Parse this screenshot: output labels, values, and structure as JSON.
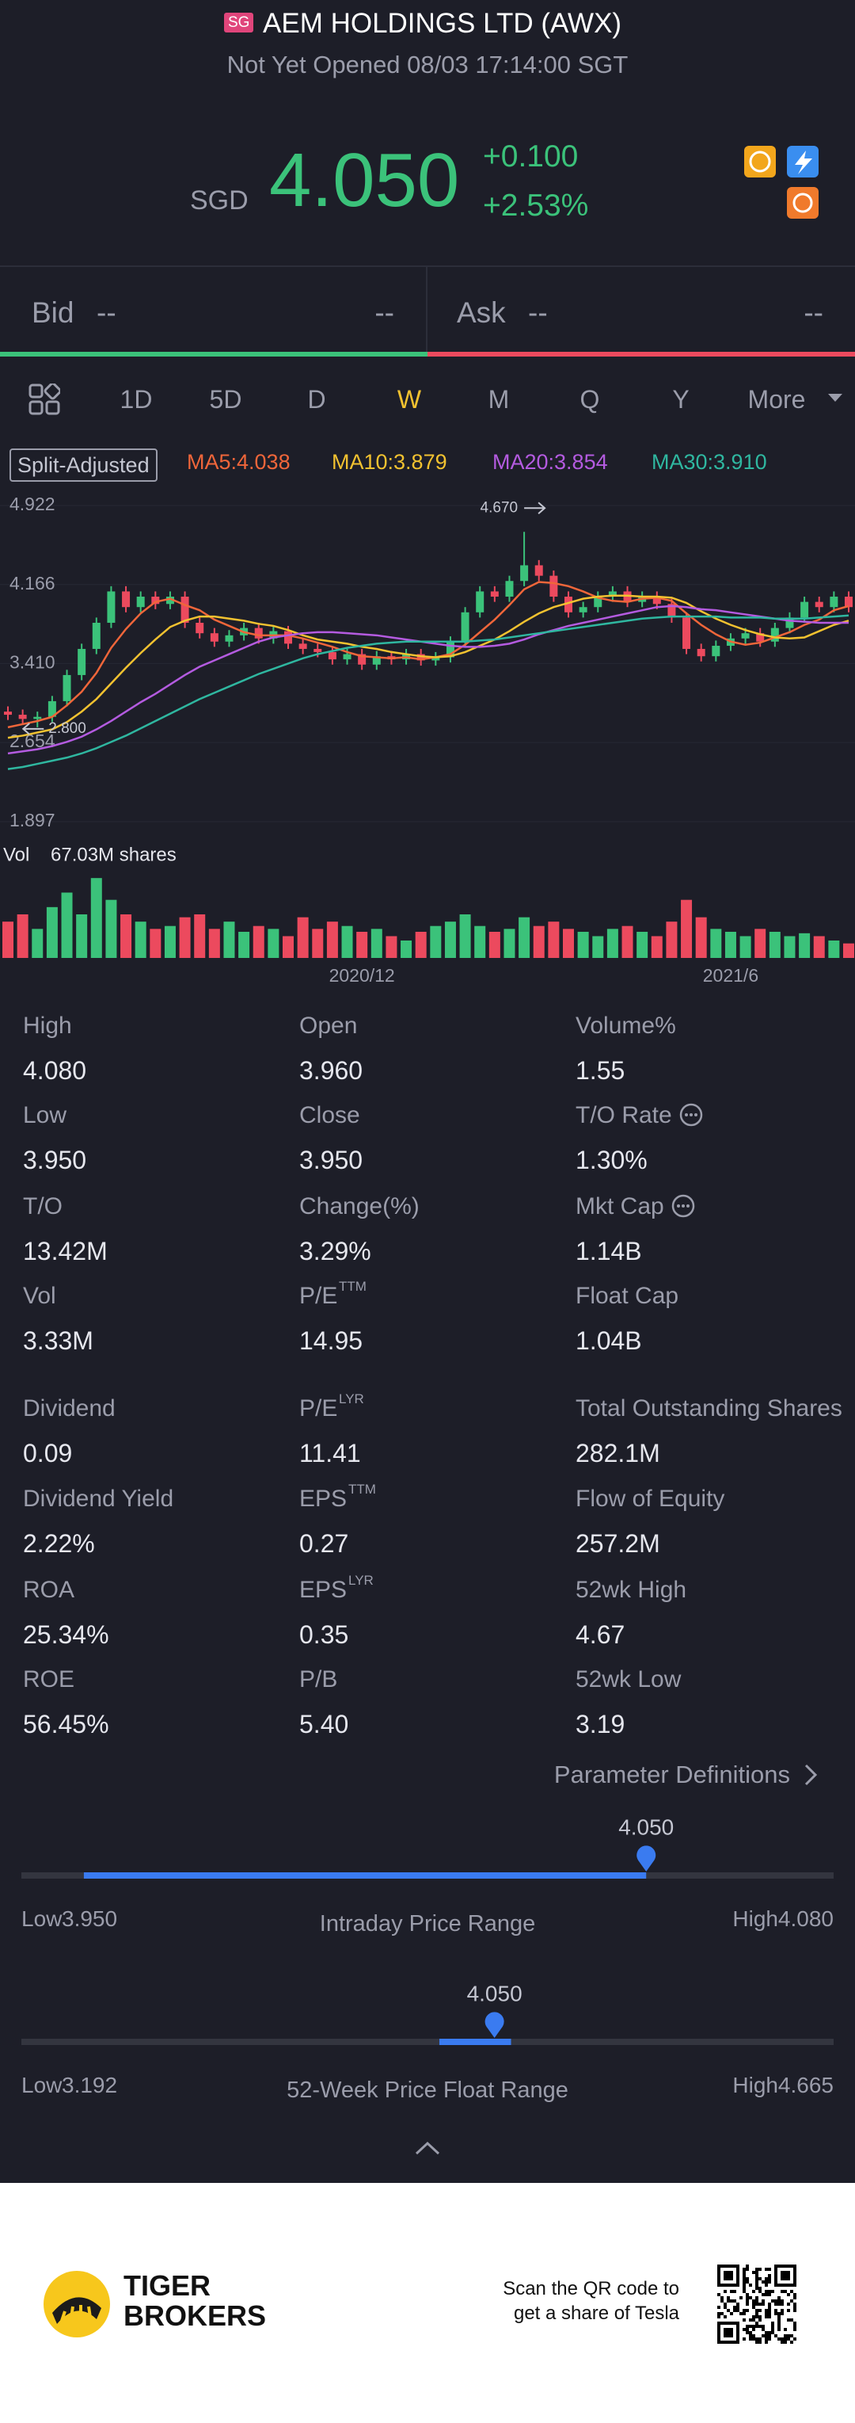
{
  "header": {
    "badge": "SG",
    "title": "AEM HOLDINGS LTD (AWX)",
    "status": "Not Yet Opened 08/03 17:14:00 SGT"
  },
  "quote": {
    "currency": "SGD",
    "price": "4.050",
    "change": "+0.100",
    "change_pct": "+2.53%"
  },
  "book": {
    "bid_label": "Bid",
    "bid_price": "--",
    "bid_size": "--",
    "ask_label": "Ask",
    "ask_price": "--",
    "ask_size": "--"
  },
  "tabs": {
    "items": [
      "1D",
      "5D",
      "D",
      "W",
      "M",
      "Q",
      "Y",
      "More"
    ],
    "active": 3
  },
  "chart_data": {
    "type": "candlestick",
    "adjust_label": "Split-Adjusted",
    "ylim": [
      1.897,
      4.922
    ],
    "yticks": [
      {
        "value": 4.922,
        "label": "4.922"
      },
      {
        "value": 4.166,
        "label": "4.166"
      },
      {
        "value": 3.41,
        "label": "3.410"
      },
      {
        "value": 2.654,
        "label": "2.654"
      },
      {
        "value": 1.897,
        "label": "1.897"
      }
    ],
    "xticks": [
      {
        "value": 24,
        "label": "2020/12"
      },
      {
        "value": 49,
        "label": "2021/6"
      }
    ],
    "open": [
      2.95,
      2.92,
      2.88,
      2.9,
      3.05,
      3.3,
      3.55,
      3.8,
      4.1,
      3.95,
      4.05,
      3.98,
      4.05,
      3.8,
      3.7,
      3.62,
      3.68,
      3.75,
      3.65,
      3.72,
      3.6,
      3.55,
      3.52,
      3.45,
      3.5,
      3.4,
      3.48,
      3.45,
      3.5,
      3.44,
      3.47,
      3.62,
      3.9,
      4.1,
      4.05,
      4.2,
      4.35,
      4.25,
      4.05,
      3.9,
      3.95,
      4.05,
      4.1,
      4.0,
      4.05,
      3.98,
      3.85,
      3.55,
      3.48,
      3.58,
      3.65,
      3.7,
      3.62,
      3.75,
      3.85,
      4.0,
      3.95,
      4.05
    ],
    "high": [
      3.0,
      2.97,
      2.95,
      3.1,
      3.35,
      3.6,
      3.85,
      4.15,
      4.15,
      4.1,
      4.1,
      4.1,
      4.1,
      3.85,
      3.75,
      3.73,
      3.8,
      3.8,
      3.77,
      3.77,
      3.65,
      3.6,
      3.57,
      3.55,
      3.55,
      3.53,
      3.53,
      3.55,
      3.55,
      3.52,
      3.67,
      3.95,
      4.15,
      4.15,
      4.25,
      4.67,
      4.4,
      4.3,
      4.1,
      4.0,
      4.1,
      4.15,
      4.15,
      4.1,
      4.1,
      4.03,
      3.9,
      3.6,
      3.63,
      3.7,
      3.75,
      3.75,
      3.8,
      3.9,
      4.05,
      4.05,
      4.1,
      4.1
    ],
    "low": [
      2.87,
      2.83,
      2.8,
      2.85,
      3.0,
      3.25,
      3.5,
      3.75,
      3.9,
      3.9,
      3.93,
      3.93,
      3.75,
      3.65,
      3.57,
      3.57,
      3.63,
      3.6,
      3.6,
      3.55,
      3.5,
      3.47,
      3.4,
      3.4,
      3.35,
      3.35,
      3.4,
      3.4,
      3.39,
      3.39,
      3.42,
      3.57,
      3.85,
      4.0,
      4.0,
      4.15,
      4.2,
      4.0,
      3.85,
      3.85,
      3.9,
      4.0,
      3.95,
      3.95,
      3.93,
      3.8,
      3.5,
      3.43,
      3.43,
      3.53,
      3.6,
      3.57,
      3.57,
      3.7,
      3.8,
      3.9,
      3.9,
      3.9
    ],
    "close": [
      2.92,
      2.88,
      2.9,
      3.05,
      3.3,
      3.55,
      3.8,
      4.1,
      3.95,
      4.05,
      3.98,
      4.05,
      3.8,
      3.7,
      3.62,
      3.68,
      3.75,
      3.65,
      3.72,
      3.6,
      3.55,
      3.52,
      3.45,
      3.5,
      3.4,
      3.48,
      3.45,
      3.5,
      3.44,
      3.47,
      3.62,
      3.9,
      4.1,
      4.05,
      4.2,
      4.35,
      4.25,
      4.05,
      3.9,
      3.95,
      4.05,
      4.1,
      4.0,
      4.05,
      3.98,
      3.85,
      3.55,
      3.48,
      3.58,
      3.65,
      3.7,
      3.62,
      3.75,
      3.85,
      4.0,
      3.95,
      4.05,
      3.95
    ],
    "up_color": "#3bc27a",
    "down_color": "#ec4a5e",
    "series": [
      {
        "name": "MA5:4.038",
        "color": "#f0663a",
        "values": [
          2.8,
          2.83,
          2.86,
          2.9,
          3.01,
          3.14,
          3.32,
          3.56,
          3.74,
          3.89,
          4.0,
          4.03,
          3.97,
          3.92,
          3.83,
          3.77,
          3.71,
          3.68,
          3.68,
          3.68,
          3.65,
          3.61,
          3.57,
          3.52,
          3.48,
          3.47,
          3.46,
          3.47,
          3.45,
          3.47,
          3.5,
          3.59,
          3.71,
          3.83,
          3.97,
          4.12,
          4.19,
          4.18,
          4.15,
          4.1,
          4.04,
          4.01,
          4.0,
          4.03,
          4.04,
          4.01,
          3.89,
          3.78,
          3.69,
          3.62,
          3.59,
          3.61,
          3.66,
          3.71,
          3.78,
          3.83,
          3.92,
          3.96
        ]
      },
      {
        "name": "MA10:3.879",
        "color": "#f2c230",
        "values": [
          2.7,
          2.72,
          2.75,
          2.78,
          2.85,
          2.95,
          3.07,
          3.22,
          3.37,
          3.51,
          3.64,
          3.76,
          3.82,
          3.86,
          3.86,
          3.84,
          3.82,
          3.79,
          3.77,
          3.73,
          3.68,
          3.64,
          3.62,
          3.6,
          3.57,
          3.55,
          3.52,
          3.5,
          3.48,
          3.47,
          3.48,
          3.52,
          3.58,
          3.64,
          3.72,
          3.81,
          3.89,
          3.95,
          3.99,
          4.03,
          4.05,
          4.06,
          4.06,
          4.05,
          4.05,
          4.04,
          3.99,
          3.91,
          3.84,
          3.78,
          3.73,
          3.69,
          3.66,
          3.65,
          3.66,
          3.72,
          3.78,
          3.82
        ]
      },
      {
        "name": "MA20:3.854",
        "color": "#b45be0",
        "values": [
          2.55,
          2.57,
          2.59,
          2.62,
          2.66,
          2.71,
          2.78,
          2.86,
          2.95,
          3.04,
          3.12,
          3.21,
          3.3,
          3.38,
          3.44,
          3.5,
          3.56,
          3.62,
          3.66,
          3.68,
          3.7,
          3.71,
          3.71,
          3.7,
          3.69,
          3.68,
          3.66,
          3.64,
          3.62,
          3.6,
          3.58,
          3.57,
          3.57,
          3.58,
          3.6,
          3.64,
          3.69,
          3.73,
          3.77,
          3.8,
          3.83,
          3.86,
          3.89,
          3.92,
          3.95,
          3.96,
          3.95,
          3.93,
          3.92,
          3.9,
          3.88,
          3.86,
          3.84,
          3.82,
          3.81,
          3.8,
          3.8,
          3.8
        ]
      },
      {
        "name": "MA30:3.910",
        "color": "#2fb7a0",
        "values": [
          2.4,
          2.42,
          2.45,
          2.48,
          2.51,
          2.55,
          2.6,
          2.66,
          2.72,
          2.79,
          2.86,
          2.93,
          3.0,
          3.07,
          3.13,
          3.19,
          3.25,
          3.31,
          3.36,
          3.41,
          3.46,
          3.5,
          3.53,
          3.56,
          3.58,
          3.6,
          3.61,
          3.62,
          3.62,
          3.62,
          3.62,
          3.62,
          3.63,
          3.64,
          3.66,
          3.68,
          3.7,
          3.72,
          3.74,
          3.76,
          3.78,
          3.8,
          3.82,
          3.84,
          3.85,
          3.86,
          3.86,
          3.86,
          3.86,
          3.85,
          3.85,
          3.85,
          3.84,
          3.84,
          3.84,
          3.85,
          3.86,
          3.87
        ]
      }
    ],
    "annotations": [
      {
        "text": "4.670",
        "at": 35
      },
      {
        "text": "2.800",
        "at": 2
      }
    ],
    "volume": {
      "label": "Vol",
      "value_label": "67.03M shares",
      "vlim": [
        0,
        60
      ],
      "values": [
        25,
        30,
        20,
        35,
        45,
        30,
        55,
        40,
        30,
        25,
        20,
        22,
        28,
        30,
        20,
        25,
        18,
        22,
        20,
        15,
        28,
        20,
        25,
        22,
        18,
        20,
        15,
        12,
        18,
        22,
        25,
        30,
        22,
        18,
        20,
        28,
        22,
        25,
        20,
        18,
        15,
        20,
        22,
        18,
        15,
        25,
        40,
        28,
        20,
        18,
        15,
        20,
        18,
        15,
        17,
        15,
        12,
        10
      ]
    }
  },
  "stats": [
    [
      {
        "label": "High",
        "value": "4.080"
      },
      {
        "label": "Open",
        "value": "3.960"
      },
      {
        "label": "Volume%",
        "value": "1.55"
      }
    ],
    [
      {
        "label": "Low",
        "value": "3.950"
      },
      {
        "label": "Close",
        "value": "3.950"
      },
      {
        "label": "T/O Rate",
        "value": "1.30%",
        "info": true
      }
    ],
    [
      {
        "label": "T/O",
        "value": "13.42M"
      },
      {
        "label": "Change(%)",
        "value": "3.29%"
      },
      {
        "label": "Mkt Cap",
        "value": "1.14B",
        "info": true
      }
    ],
    [
      {
        "label": "Vol",
        "value": "3.33M"
      },
      {
        "label": "P/E",
        "sup": "TTM",
        "value": "14.95"
      },
      {
        "label": "Float Cap",
        "value": "1.04B"
      }
    ],
    [
      {
        "label": "Dividend",
        "value": "0.09"
      },
      {
        "label": "P/E",
        "sup": "LYR",
        "value": "11.41"
      },
      {
        "label": "Total Outstanding Shares",
        "value": "282.1M"
      }
    ],
    [
      {
        "label": "Dividend Yield",
        "value": "2.22%"
      },
      {
        "label": "EPS",
        "sup": "TTM",
        "value": "0.27"
      },
      {
        "label": "Flow of Equity",
        "value": "257.2M"
      }
    ],
    [
      {
        "label": "ROA",
        "value": "25.34%"
      },
      {
        "label": "EPS",
        "sup": "LYR",
        "value": "0.35"
      },
      {
        "label": "52wk High",
        "value": "4.67"
      }
    ],
    [
      {
        "label": "ROE",
        "value": "56.45%"
      },
      {
        "label": "P/B",
        "value": "5.40"
      },
      {
        "label": "52wk Low",
        "value": "3.19"
      }
    ]
  ],
  "param_link": "Parameter Definitions",
  "ranges": [
    {
      "title": "Intraday Price Range",
      "low_prefix": "Low",
      "low": {
        "value": 3.95,
        "label": "3.950"
      },
      "high_prefix": "High",
      "high": {
        "value": 4.08,
        "label": "4.080"
      },
      "current": {
        "value": 4.05,
        "label": "4.050"
      },
      "fill": [
        3.96,
        4.05
      ]
    },
    {
      "title": "52-Week Price Float Range",
      "low_prefix": "Low",
      "low": {
        "value": 3.192,
        "label": "3.192"
      },
      "high_prefix": "High",
      "high": {
        "value": 4.665,
        "label": "4.665"
      },
      "current": {
        "value": 4.05,
        "label": "4.050"
      },
      "fill": [
        3.95,
        4.08
      ]
    }
  ],
  "footer": {
    "brand_line1": "TIGER",
    "brand_line2": "BROKERS",
    "qr_line1": "Scan the QR code to",
    "qr_line2": "get a share of Tesla"
  }
}
